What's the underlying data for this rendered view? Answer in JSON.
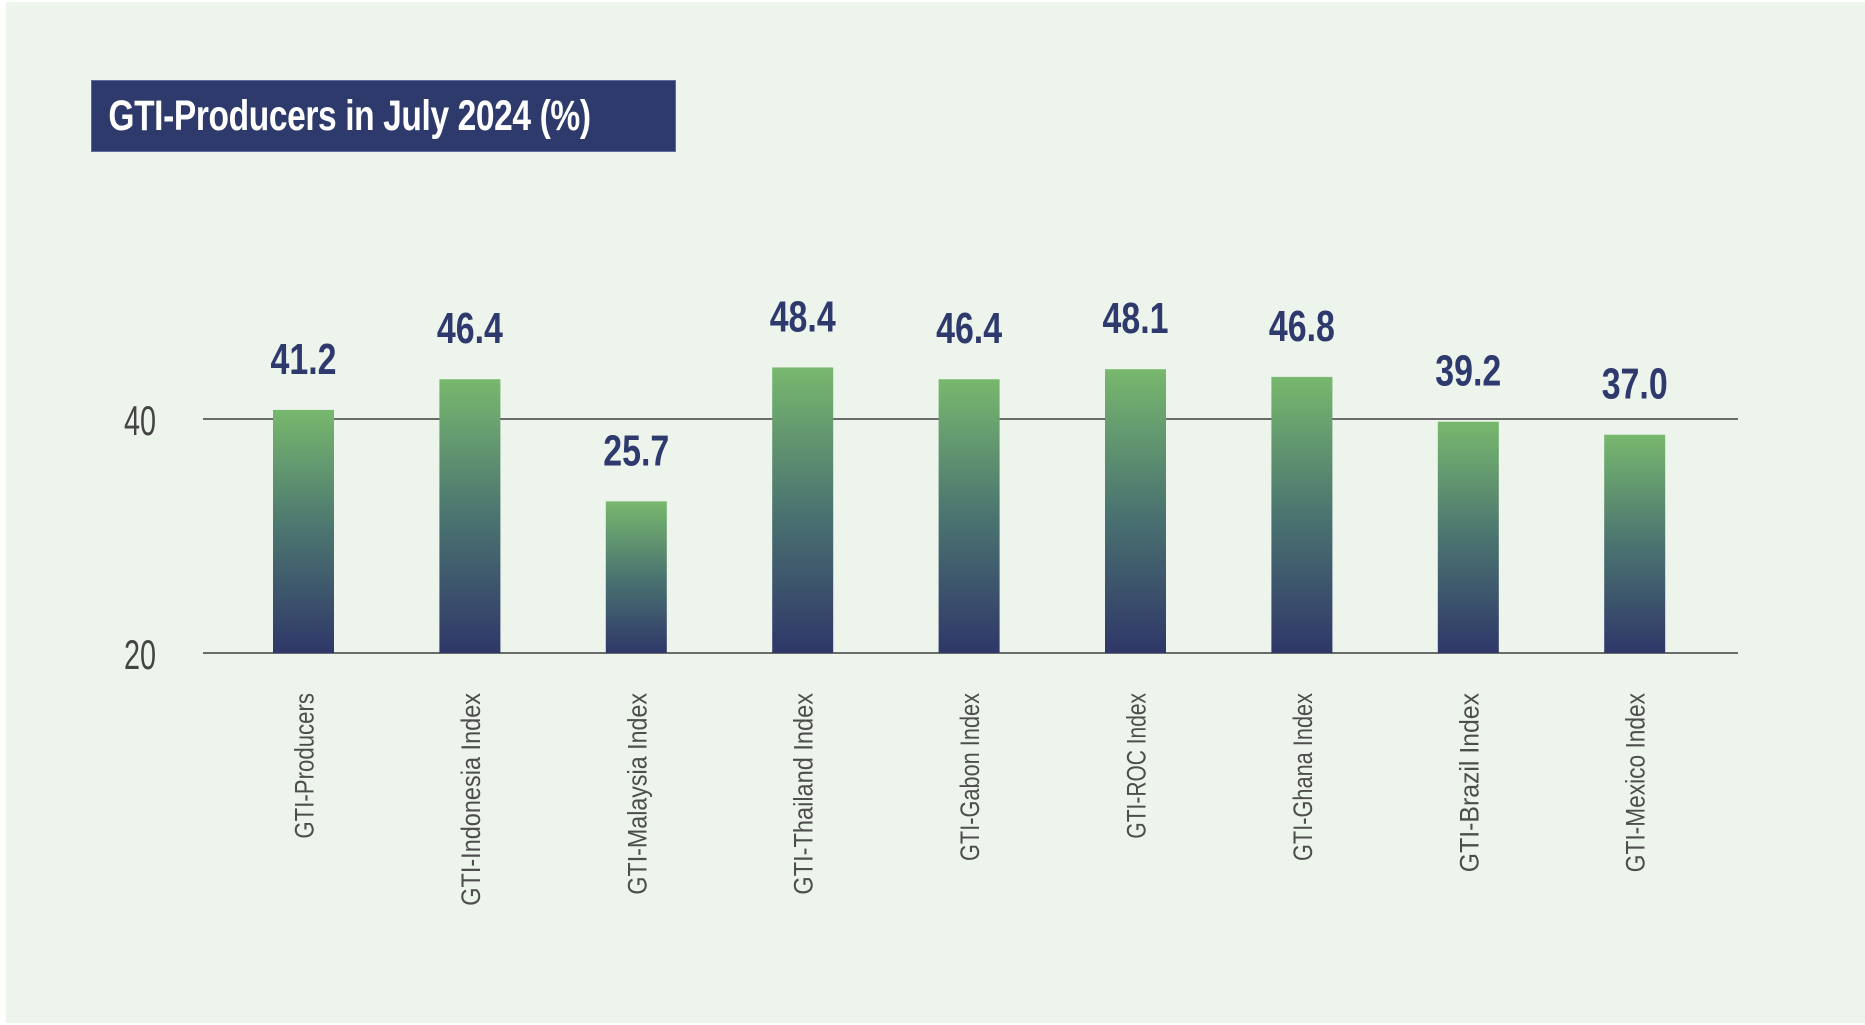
{
  "title": "GTI-Producers in July 2024 (%)",
  "colors": {
    "background": "#edf4eb",
    "title_box": "#2e3a6b",
    "bar_top": "#78b86e",
    "bar_bottom": "#2f3769",
    "value_label": "#2e3a6e",
    "grid": "#6b6b6b"
  },
  "chart_data": {
    "type": "bar",
    "title": "GTI-Producers in July 2024 (%)",
    "xlabel": "",
    "ylabel": "",
    "categories": [
      "GTI-Producers",
      "GTI-Indonesia Index",
      "GTI-Malaysia Index",
      "GTI-Thailand Index",
      "GTI-Gabon Index",
      "GTI-ROC Index",
      "GTI-Ghana Index",
      "GTI-Brazil Index",
      "GTI-Mexico Index"
    ],
    "values": [
      41.2,
      46.4,
      25.7,
      48.4,
      46.4,
      48.1,
      46.8,
      39.2,
      37.0
    ],
    "value_labels": [
      "41.2",
      "46.4",
      "25.7",
      "48.4",
      "46.4",
      "48.1",
      "46.8",
      "39.2",
      "37.0"
    ],
    "y_ticks": [
      "40",
      "20"
    ],
    "grid": true,
    "legend": "none"
  }
}
